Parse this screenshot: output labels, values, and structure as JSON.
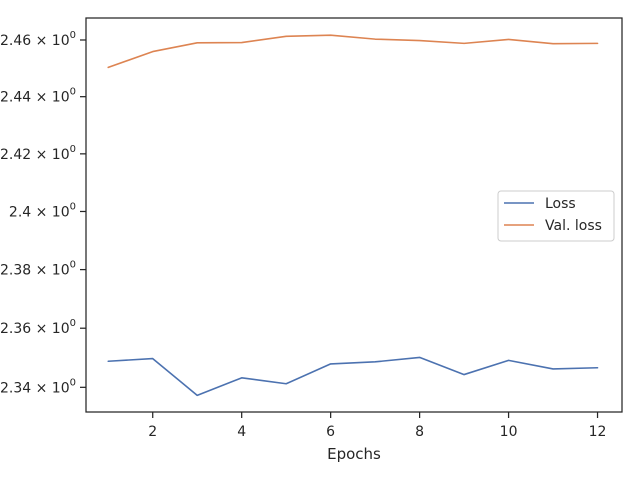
{
  "chart_data": {
    "type": "line",
    "title": "",
    "xlabel": "Epochs",
    "ylabel": "",
    "yscale": "log",
    "x": [
      1,
      2,
      3,
      4,
      5,
      6,
      7,
      8,
      9,
      10,
      11,
      12
    ],
    "xlim": [
      0.5,
      12.55
    ],
    "ylim": [
      2.3317,
      2.4678
    ],
    "xticks": [
      2,
      4,
      6,
      8,
      10,
      12
    ],
    "xtick_labels": [
      "2",
      "4",
      "6",
      "8",
      "10",
      "12"
    ],
    "yticks": [
      2.34,
      2.36,
      2.38,
      2.4,
      2.42,
      2.44,
      2.46
    ],
    "ytick_mantissas": [
      "2.34",
      "2.36",
      "2.38",
      "2.4",
      "2.42",
      "2.44",
      "2.46"
    ],
    "ytick_base": "10",
    "ytick_exponent": "0",
    "grid": false,
    "legend_position": "center-right",
    "series": [
      {
        "name": "Loss",
        "color": "#4c72b0",
        "values": [
          2.3488,
          2.3497,
          2.3373,
          2.3432,
          2.3412,
          2.3479,
          2.3486,
          2.3501,
          2.3443,
          2.3491,
          2.3462,
          2.3466
        ]
      },
      {
        "name": "Val. loss",
        "color": "#dd8452",
        "values": [
          2.4503,
          2.4559,
          2.459,
          2.4591,
          2.4613,
          2.4617,
          2.4603,
          2.4598,
          2.4588,
          2.4602,
          2.4587,
          2.4588
        ]
      }
    ]
  }
}
